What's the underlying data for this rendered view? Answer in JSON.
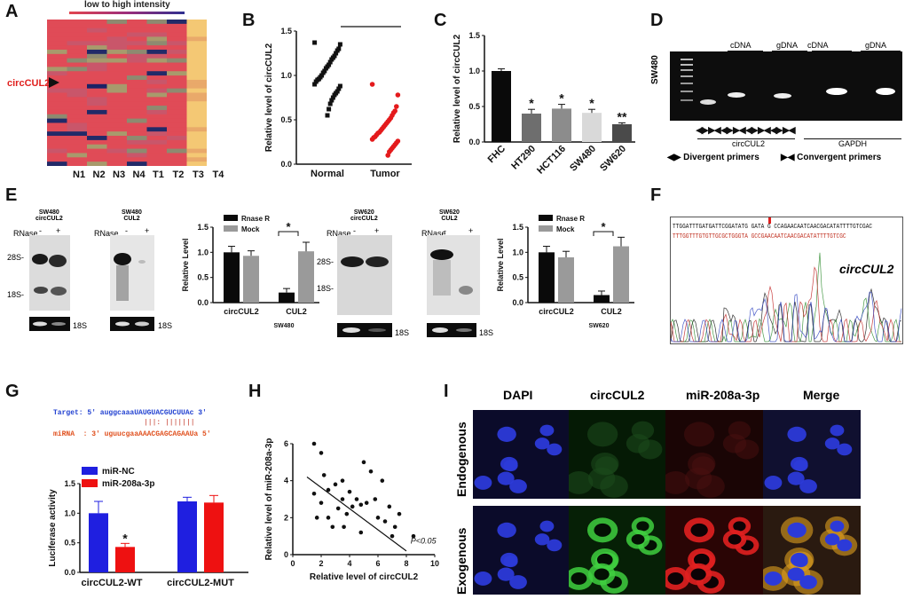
{
  "panels": {
    "A": {
      "label": "A",
      "header": "low to high intensity",
      "marker": "circCUL2",
      "cols": [
        "N1",
        "N2",
        "N3",
        "N4",
        "T1",
        "T2",
        "T3",
        "T4"
      ]
    },
    "B": {
      "label": "B",
      "star": "*"
    },
    "C": {
      "label": "C"
    },
    "D": {
      "label": "D",
      "sample": "SW480",
      "headers": [
        "cDNA",
        "gDNA",
        "cDNA",
        "gDNA"
      ],
      "groups": [
        "circCUL2",
        "GAPDH"
      ],
      "legend_div": "Divergent primers",
      "legend_conv": "Convergent primers"
    },
    "E": {
      "label": "E",
      "blots": [
        {
          "title": "SW480\ncircCUL2",
          "rnase": "RNase",
          "signs": [
            "-",
            "+"
          ],
          "m28": "28S-",
          "m18": "18S-",
          "band": "18S"
        },
        {
          "title": "SW480\nCUL2",
          "rnase": "RNase",
          "signs": [
            "-",
            "+"
          ],
          "band": "18S"
        },
        {
          "title": "SW620\ncircCUL2",
          "rnase": "RNase",
          "signs": [
            "-",
            "+"
          ],
          "m28": "28S-",
          "m18": "18S-",
          "band": "18S"
        },
        {
          "title": "SW620\nCUL2",
          "rnase": "RNase",
          "signs": [
            "-",
            "+"
          ],
          "m28": "28S-",
          "m18": "18S-",
          "band": "18S"
        }
      ]
    },
    "F": {
      "label": "F",
      "seq_top": "TTGGATTTGATGATTCGGATATG GATA G CCAGAACAATCAACGACATATTTTGTCGAC",
      "seq_bot": "TTTGGTTTGTGTTGCGCTGGGTA GCCGAACAATCAACGACATATTTTGTCGC",
      "title": "circCUL2"
    },
    "G": {
      "label": "G",
      "target": "Target: 5' auggcaaaUAUGUACGUCUUAc 3'",
      "bars": "|||: |||||||",
      "mirna": "miRNA  : 3' uguucgaaAAACGAGCAGAAUa 5'"
    },
    "H": {
      "label": "H"
    },
    "I": {
      "label": "I",
      "cols": [
        "DAPI",
        "circCUL2",
        "miR-208a-3p",
        "Merge"
      ],
      "rows": [
        "Endogenous",
        "Exogenous"
      ]
    }
  },
  "chart_data": [
    {
      "type": "scatter",
      "panel": "B",
      "title": "",
      "ylabel": "Relative level of circCUL2",
      "xlabel": "",
      "categories": [
        "Normal",
        "Tumor"
      ],
      "ylim": [
        0,
        1.5
      ],
      "yticks": [
        "0.0",
        "0.5",
        "1.0",
        "1.5"
      ],
      "series": [
        {
          "name": "Normal",
          "color": "#111111",
          "marker": "square",
          "values": [
            1.37,
            1.35,
            1.3,
            1.28,
            1.25,
            1.22,
            1.2,
            1.18,
            1.15,
            1.12,
            1.1,
            1.08,
            1.05,
            1.03,
            1.0,
            0.98,
            0.96,
            0.95,
            0.93,
            0.9,
            0.88,
            0.85,
            0.82,
            0.8,
            0.78,
            0.75,
            0.72,
            0.68,
            0.62,
            0.55
          ]
        },
        {
          "name": "Tumor",
          "color": "#e41a1c",
          "marker": "circle",
          "values": [
            0.9,
            0.78,
            0.65,
            0.6,
            0.58,
            0.55,
            0.52,
            0.5,
            0.48,
            0.46,
            0.44,
            0.42,
            0.4,
            0.38,
            0.36,
            0.35,
            0.33,
            0.31,
            0.3,
            0.28,
            0.26,
            0.24,
            0.22,
            0.2,
            0.18,
            0.16,
            0.14,
            0.1
          ]
        }
      ]
    },
    {
      "type": "bar",
      "panel": "C",
      "title": "",
      "ylabel": "Relative level of circCUL2",
      "xlabel": "",
      "categories": [
        "FHC",
        "HT290",
        "HCT116",
        "SW480",
        "SW620"
      ],
      "ylim": [
        0,
        1.5
      ],
      "yticks": [
        "0.0",
        "0.5",
        "1.0",
        "1.5"
      ],
      "values": [
        1.0,
        0.4,
        0.47,
        0.41,
        0.25
      ],
      "errors": [
        0.03,
        0.06,
        0.06,
        0.05,
        0.02
      ],
      "annotations": [
        "",
        "*",
        "*",
        "*",
        "**"
      ],
      "colors": [
        "#0a0a0a",
        "#6e6e6e",
        "#8c8c8c",
        "#d9d9d9",
        "#4a4a4a"
      ]
    },
    {
      "type": "bar",
      "panel": "E-SW480",
      "title": "",
      "ylabel": "Relative Level",
      "xlabel": "SW480",
      "categories": [
        "circCUL2",
        "CUL2"
      ],
      "ylim": [
        0,
        1.5
      ],
      "yticks": [
        "0.0",
        "0.5",
        "1.0",
        "1.5"
      ],
      "series": [
        {
          "name": "Rnase R",
          "color": "#0a0a0a",
          "values": [
            1.0,
            0.2
          ],
          "errors": [
            0.12,
            0.08
          ]
        },
        {
          "name": "Mock",
          "color": "#9a9a9a",
          "values": [
            0.93,
            1.02
          ],
          "errors": [
            0.1,
            0.18
          ]
        }
      ],
      "annotation": "*"
    },
    {
      "type": "bar",
      "panel": "E-SW620",
      "title": "",
      "ylabel": "Relative Level",
      "xlabel": "SW620",
      "categories": [
        "circCUL2",
        "CUL2"
      ],
      "ylim": [
        0,
        1.5
      ],
      "yticks": [
        "0.0",
        "0.5",
        "1.0",
        "1.5"
      ],
      "series": [
        {
          "name": "Rnase R",
          "color": "#0a0a0a",
          "values": [
            1.0,
            0.15
          ],
          "errors": [
            0.12,
            0.08
          ]
        },
        {
          "name": "Mock",
          "color": "#9a9a9a",
          "values": [
            0.9,
            1.12
          ],
          "errors": [
            0.12,
            0.18
          ]
        }
      ],
      "annotation": "*"
    },
    {
      "type": "bar",
      "panel": "G",
      "title": "",
      "ylabel": "Luciferase activity",
      "xlabel": "",
      "categories": [
        "circCUL2-WT",
        "circCUL2-MUT"
      ],
      "ylim": [
        0,
        1.5
      ],
      "yticks": [
        "0.0",
        "0.5",
        "1.0",
        "1.5"
      ],
      "series": [
        {
          "name": "miR-NC",
          "color": "#1f1fe0",
          "values": [
            1.0,
            1.2
          ],
          "errors": [
            0.2,
            0.07
          ]
        },
        {
          "name": "miR-208a-3p",
          "color": "#ee1111",
          "values": [
            0.43,
            1.18
          ],
          "errors": [
            0.06,
            0.12
          ]
        }
      ],
      "annotation": "*"
    },
    {
      "type": "scatter",
      "panel": "H",
      "title": "",
      "xlabel": "Relative level of circCUL2",
      "ylabel": "Relative level of miR-208a-3p",
      "xlim": [
        0,
        10
      ],
      "ylim": [
        0,
        6
      ],
      "xticks": [
        "0",
        "2",
        "4",
        "6",
        "8",
        "10"
      ],
      "yticks": [
        "0",
        "2",
        "4",
        "6"
      ],
      "points": [
        [
          1.5,
          6.0
        ],
        [
          1.5,
          3.3
        ],
        [
          1.7,
          2.0
        ],
        [
          2.0,
          5.5
        ],
        [
          2.0,
          2.8
        ],
        [
          2.2,
          4.3
        ],
        [
          2.5,
          3.5
        ],
        [
          2.5,
          2.0
        ],
        [
          2.8,
          1.5
        ],
        [
          3.0,
          3.8
        ],
        [
          3.2,
          2.5
        ],
        [
          3.5,
          4.0
        ],
        [
          3.5,
          3.0
        ],
        [
          3.6,
          1.5
        ],
        [
          3.8,
          2.2
        ],
        [
          4.0,
          3.4
        ],
        [
          4.2,
          2.6
        ],
        [
          4.5,
          3.0
        ],
        [
          4.8,
          1.2
        ],
        [
          4.8,
          2.7
        ],
        [
          5.0,
          5.0
        ],
        [
          5.2,
          2.8
        ],
        [
          5.5,
          4.5
        ],
        [
          5.8,
          3.0
        ],
        [
          6.0,
          2.0
        ],
        [
          6.3,
          4.0
        ],
        [
          6.5,
          1.8
        ],
        [
          6.8,
          2.6
        ],
        [
          7.0,
          1.0
        ],
        [
          7.2,
          1.5
        ],
        [
          7.5,
          2.2
        ],
        [
          8.5,
          1.0
        ]
      ],
      "fit": [
        [
          1.0,
          4.2
        ],
        [
          8.0,
          0.2
        ]
      ],
      "annotation": "P<0.05"
    }
  ]
}
